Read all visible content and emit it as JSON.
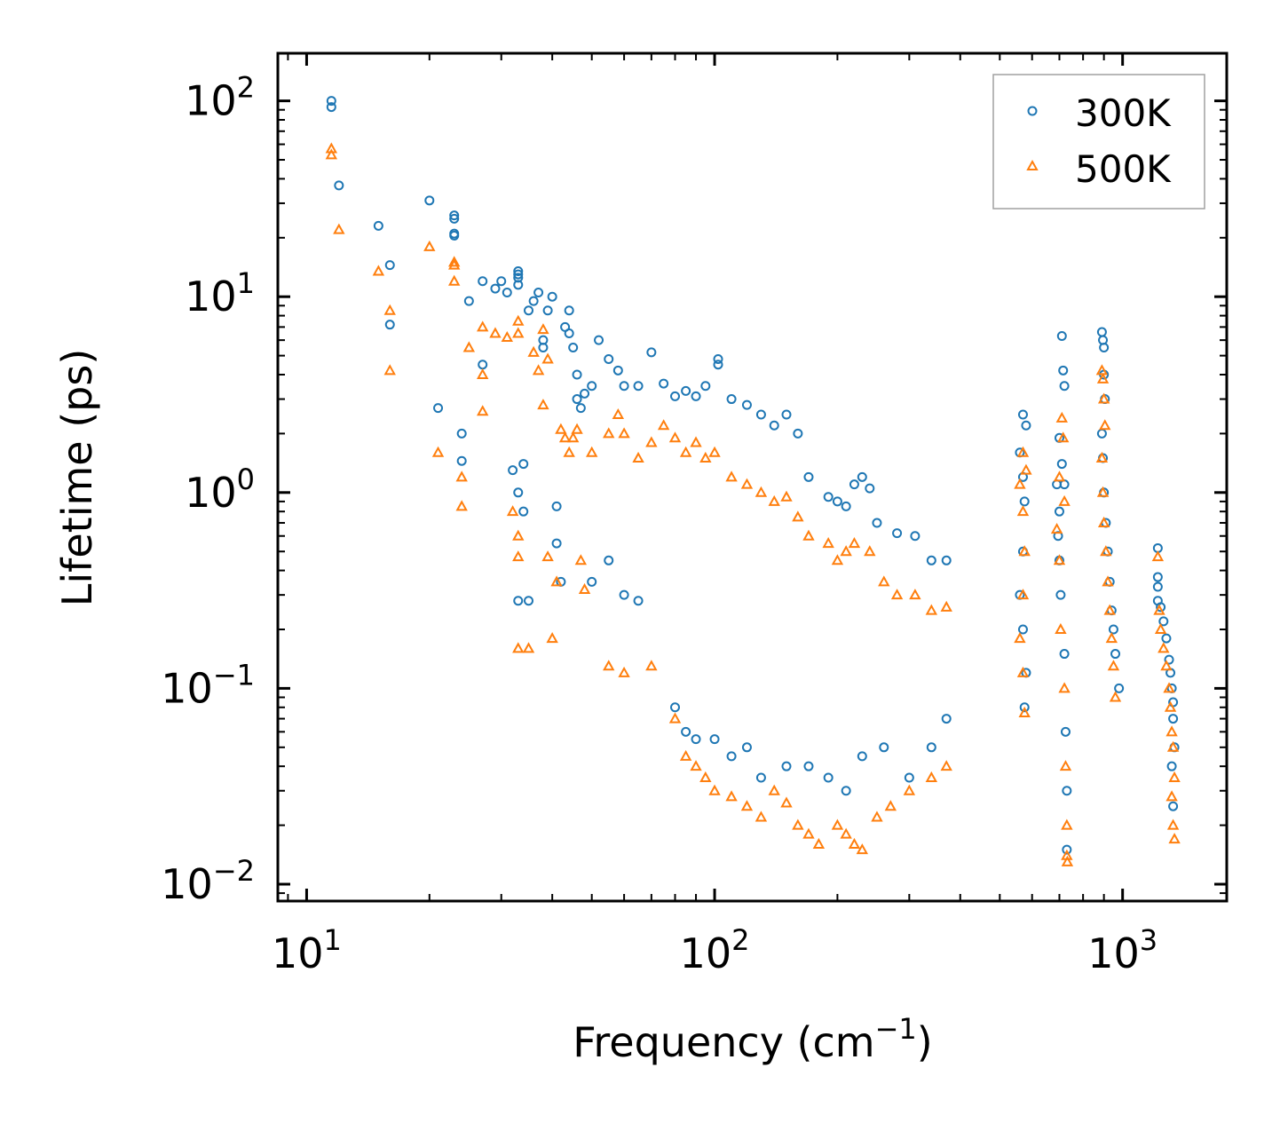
{
  "chart_data": {
    "type": "scatter",
    "title": "",
    "xlabel": "Frequency (cm",
    "xlabel_sup": "−1",
    "xlabel_tail": ")",
    "ylabel": "Lifetime (ps)",
    "xscale": "log",
    "yscale": "log",
    "xlim": [
      8.5,
      1800
    ],
    "ylim": [
      0.0082,
      175
    ],
    "legend_position": "top-right",
    "x_ticks": [
      {
        "value": 10,
        "base": "10",
        "exp": "1"
      },
      {
        "value": 100,
        "base": "10",
        "exp": "2"
      },
      {
        "value": 1000,
        "base": "10",
        "exp": "3"
      }
    ],
    "y_ticks": [
      {
        "value": 100,
        "base": "10",
        "exp": "2"
      },
      {
        "value": 10,
        "base": "10",
        "exp": "1"
      },
      {
        "value": 1,
        "base": "10",
        "exp": "0"
      },
      {
        "value": 0.1,
        "base": "10",
        "exp": "−1"
      },
      {
        "value": 0.01,
        "base": "10",
        "exp": "−2"
      }
    ],
    "series": [
      {
        "name": "300K",
        "marker": "circle",
        "color": "#1f77b4",
        "points": [
          [
            11.5,
            100
          ],
          [
            11.5,
            93
          ],
          [
            12,
            37
          ],
          [
            15,
            23
          ],
          [
            16,
            14.5
          ],
          [
            16,
            7.2
          ],
          [
            20,
            31
          ],
          [
            21,
            2.7
          ],
          [
            23,
            26
          ],
          [
            23,
            25
          ],
          [
            23,
            21
          ],
          [
            23,
            20.5
          ],
          [
            24,
            2
          ],
          [
            24,
            1.45
          ],
          [
            25,
            9.5
          ],
          [
            27,
            12
          ],
          [
            27,
            4.5
          ],
          [
            29,
            11
          ],
          [
            30,
            12
          ],
          [
            31,
            10.5
          ],
          [
            33,
            13.5
          ],
          [
            33,
            13
          ],
          [
            33,
            12.5
          ],
          [
            33,
            11.5
          ],
          [
            32,
            1.3
          ],
          [
            33,
            1
          ],
          [
            34,
            1.4
          ],
          [
            34,
            0.8
          ],
          [
            33,
            0.28
          ],
          [
            35,
            0.28
          ],
          [
            35,
            8.5
          ],
          [
            36,
            9.5
          ],
          [
            37,
            10.5
          ],
          [
            38,
            6
          ],
          [
            38,
            5.5
          ],
          [
            39,
            8.5
          ],
          [
            40,
            10
          ],
          [
            41,
            0.85
          ],
          [
            41,
            0.55
          ],
          [
            42,
            0.35
          ],
          [
            43,
            7
          ],
          [
            44,
            8.5
          ],
          [
            44,
            6.5
          ],
          [
            45,
            5.5
          ],
          [
            46,
            4
          ],
          [
            46,
            3
          ],
          [
            47,
            2.7
          ],
          [
            48,
            3.2
          ],
          [
            50,
            3.5
          ],
          [
            52,
            6
          ],
          [
            55,
            4.8
          ],
          [
            58,
            4.2
          ],
          [
            60,
            3.5
          ],
          [
            65,
            3.5
          ],
          [
            70,
            5.2
          ],
          [
            75,
            3.6
          ],
          [
            80,
            3.1
          ],
          [
            85,
            3.3
          ],
          [
            90,
            3.1
          ],
          [
            95,
            3.5
          ],
          [
            102,
            4.8
          ],
          [
            102,
            4.5
          ],
          [
            110,
            3
          ],
          [
            120,
            2.8
          ],
          [
            130,
            2.5
          ],
          [
            140,
            2.2
          ],
          [
            150,
            2.5
          ],
          [
            160,
            2
          ],
          [
            170,
            1.2
          ],
          [
            190,
            0.95
          ],
          [
            200,
            0.9
          ],
          [
            210,
            0.85
          ],
          [
            220,
            1.1
          ],
          [
            230,
            1.2
          ],
          [
            240,
            1.05
          ],
          [
            250,
            0.7
          ],
          [
            280,
            0.62
          ],
          [
            310,
            0.6
          ],
          [
            340,
            0.45
          ],
          [
            370,
            0.45
          ],
          [
            50,
            0.35
          ],
          [
            55,
            0.45
          ],
          [
            60,
            0.3
          ],
          [
            65,
            0.28
          ],
          [
            80,
            0.08
          ],
          [
            85,
            0.06
          ],
          [
            90,
            0.055
          ],
          [
            100,
            0.055
          ],
          [
            110,
            0.045
          ],
          [
            120,
            0.05
          ],
          [
            130,
            0.035
          ],
          [
            150,
            0.04
          ],
          [
            170,
            0.04
          ],
          [
            190,
            0.035
          ],
          [
            210,
            0.03
          ],
          [
            230,
            0.045
          ],
          [
            260,
            0.05
          ],
          [
            300,
            0.035
          ],
          [
            340,
            0.05
          ],
          [
            370,
            0.07
          ],
          [
            570,
            2.5
          ],
          [
            580,
            2.2
          ],
          [
            560,
            1.6
          ],
          [
            570,
            1.2
          ],
          [
            575,
            0.9
          ],
          [
            570,
            0.5
          ],
          [
            560,
            0.3
          ],
          [
            570,
            0.2
          ],
          [
            580,
            0.12
          ],
          [
            575,
            0.08
          ],
          [
            690,
            1.1
          ],
          [
            700,
            0.8
          ],
          [
            695,
            0.6
          ],
          [
            700,
            0.45
          ],
          [
            710,
            6.3
          ],
          [
            715,
            4.2
          ],
          [
            720,
            3.5
          ],
          [
            700,
            1.9
          ],
          [
            710,
            1.4
          ],
          [
            720,
            1.1
          ],
          [
            705,
            0.3
          ],
          [
            720,
            0.15
          ],
          [
            725,
            0.06
          ],
          [
            730,
            0.03
          ],
          [
            730,
            0.015
          ],
          [
            890,
            6.6
          ],
          [
            895,
            6
          ],
          [
            900,
            5.5
          ],
          [
            900,
            4
          ],
          [
            905,
            3
          ],
          [
            890,
            2
          ],
          [
            895,
            1.5
          ],
          [
            900,
            1
          ],
          [
            910,
            0.7
          ],
          [
            920,
            0.5
          ],
          [
            930,
            0.35
          ],
          [
            940,
            0.25
          ],
          [
            950,
            0.2
          ],
          [
            960,
            0.15
          ],
          [
            980,
            0.1
          ],
          [
            1220,
            0.52
          ],
          [
            1220,
            0.37
          ],
          [
            1220,
            0.33
          ],
          [
            1220,
            0.28
          ],
          [
            1240,
            0.26
          ],
          [
            1260,
            0.22
          ],
          [
            1280,
            0.18
          ],
          [
            1300,
            0.14
          ],
          [
            1310,
            0.12
          ],
          [
            1320,
            0.1
          ],
          [
            1330,
            0.085
          ],
          [
            1330,
            0.07
          ],
          [
            1340,
            0.05
          ],
          [
            1320,
            0.04
          ],
          [
            1330,
            0.025
          ]
        ]
      },
      {
        "name": "500K",
        "marker": "triangle",
        "color": "#ff7f0e",
        "points": [
          [
            11.5,
            57
          ],
          [
            11.5,
            53
          ],
          [
            12,
            22
          ],
          [
            15,
            13.5
          ],
          [
            16,
            8.5
          ],
          [
            16,
            4.2
          ],
          [
            20,
            18
          ],
          [
            21,
            1.6
          ],
          [
            23,
            15
          ],
          [
            23,
            14.5
          ],
          [
            23,
            12
          ],
          [
            24,
            1.2
          ],
          [
            24,
            0.85
          ],
          [
            25,
            5.5
          ],
          [
            27,
            7
          ],
          [
            27,
            4
          ],
          [
            27,
            2.6
          ],
          [
            29,
            6.5
          ],
          [
            31,
            6.2
          ],
          [
            32,
            0.8
          ],
          [
            33,
            7.5
          ],
          [
            33,
            6.5
          ],
          [
            33,
            0.6
          ],
          [
            33,
            0.47
          ],
          [
            33,
            0.16
          ],
          [
            35,
            0.16
          ],
          [
            36,
            5.2
          ],
          [
            37,
            4.2
          ],
          [
            38,
            6.8
          ],
          [
            38,
            2.8
          ],
          [
            39,
            4.8
          ],
          [
            39,
            0.47
          ],
          [
            40,
            0.18
          ],
          [
            41,
            0.35
          ],
          [
            42,
            2.1
          ],
          [
            43,
            1.9
          ],
          [
            44,
            1.6
          ],
          [
            45,
            1.9
          ],
          [
            46,
            2.1
          ],
          [
            47,
            0.45
          ],
          [
            48,
            0.32
          ],
          [
            50,
            1.6
          ],
          [
            55,
            2
          ],
          [
            58,
            2.5
          ],
          [
            60,
            2
          ],
          [
            65,
            1.5
          ],
          [
            70,
            1.8
          ],
          [
            75,
            2.2
          ],
          [
            80,
            1.9
          ],
          [
            85,
            1.6
          ],
          [
            90,
            1.8
          ],
          [
            95,
            1.5
          ],
          [
            100,
            1.6
          ],
          [
            110,
            1.2
          ],
          [
            120,
            1.1
          ],
          [
            130,
            1
          ],
          [
            140,
            0.9
          ],
          [
            150,
            0.95
          ],
          [
            160,
            0.75
          ],
          [
            170,
            0.6
          ],
          [
            190,
            0.55
          ],
          [
            200,
            0.45
          ],
          [
            210,
            0.5
          ],
          [
            220,
            0.55
          ],
          [
            240,
            0.5
          ],
          [
            260,
            0.35
          ],
          [
            280,
            0.3
          ],
          [
            310,
            0.3
          ],
          [
            340,
            0.25
          ],
          [
            370,
            0.26
          ],
          [
            55,
            0.13
          ],
          [
            60,
            0.12
          ],
          [
            70,
            0.13
          ],
          [
            80,
            0.07
          ],
          [
            85,
            0.045
          ],
          [
            90,
            0.04
          ],
          [
            95,
            0.035
          ],
          [
            100,
            0.03
          ],
          [
            110,
            0.028
          ],
          [
            120,
            0.025
          ],
          [
            130,
            0.022
          ],
          [
            140,
            0.03
          ],
          [
            150,
            0.026
          ],
          [
            160,
            0.02
          ],
          [
            170,
            0.018
          ],
          [
            180,
            0.016
          ],
          [
            200,
            0.02
          ],
          [
            210,
            0.018
          ],
          [
            220,
            0.016
          ],
          [
            230,
            0.015
          ],
          [
            250,
            0.022
          ],
          [
            270,
            0.025
          ],
          [
            300,
            0.03
          ],
          [
            340,
            0.035
          ],
          [
            370,
            0.04
          ],
          [
            570,
            1.6
          ],
          [
            580,
            1.3
          ],
          [
            560,
            1.1
          ],
          [
            570,
            0.8
          ],
          [
            575,
            0.5
          ],
          [
            570,
            0.3
          ],
          [
            560,
            0.18
          ],
          [
            570,
            0.12
          ],
          [
            575,
            0.075
          ],
          [
            690,
            0.65
          ],
          [
            700,
            0.45
          ],
          [
            710,
            2.4
          ],
          [
            715,
            1.9
          ],
          [
            700,
            1.2
          ],
          [
            720,
            0.9
          ],
          [
            705,
            0.2
          ],
          [
            720,
            0.1
          ],
          [
            725,
            0.04
          ],
          [
            730,
            0.02
          ],
          [
            730,
            0.014
          ],
          [
            732,
            0.013
          ],
          [
            890,
            4.2
          ],
          [
            895,
            3.8
          ],
          [
            900,
            3
          ],
          [
            905,
            2.2
          ],
          [
            890,
            1.5
          ],
          [
            895,
            1
          ],
          [
            900,
            0.7
          ],
          [
            910,
            0.5
          ],
          [
            920,
            0.35
          ],
          [
            930,
            0.25
          ],
          [
            940,
            0.18
          ],
          [
            950,
            0.13
          ],
          [
            960,
            0.09
          ],
          [
            1220,
            0.47
          ],
          [
            1230,
            0.25
          ],
          [
            1240,
            0.2
          ],
          [
            1260,
            0.16
          ],
          [
            1280,
            0.13
          ],
          [
            1300,
            0.1
          ],
          [
            1310,
            0.08
          ],
          [
            1320,
            0.06
          ],
          [
            1330,
            0.05
          ],
          [
            1340,
            0.035
          ],
          [
            1320,
            0.028
          ],
          [
            1330,
            0.02
          ],
          [
            1340,
            0.017
          ]
        ]
      }
    ]
  }
}
